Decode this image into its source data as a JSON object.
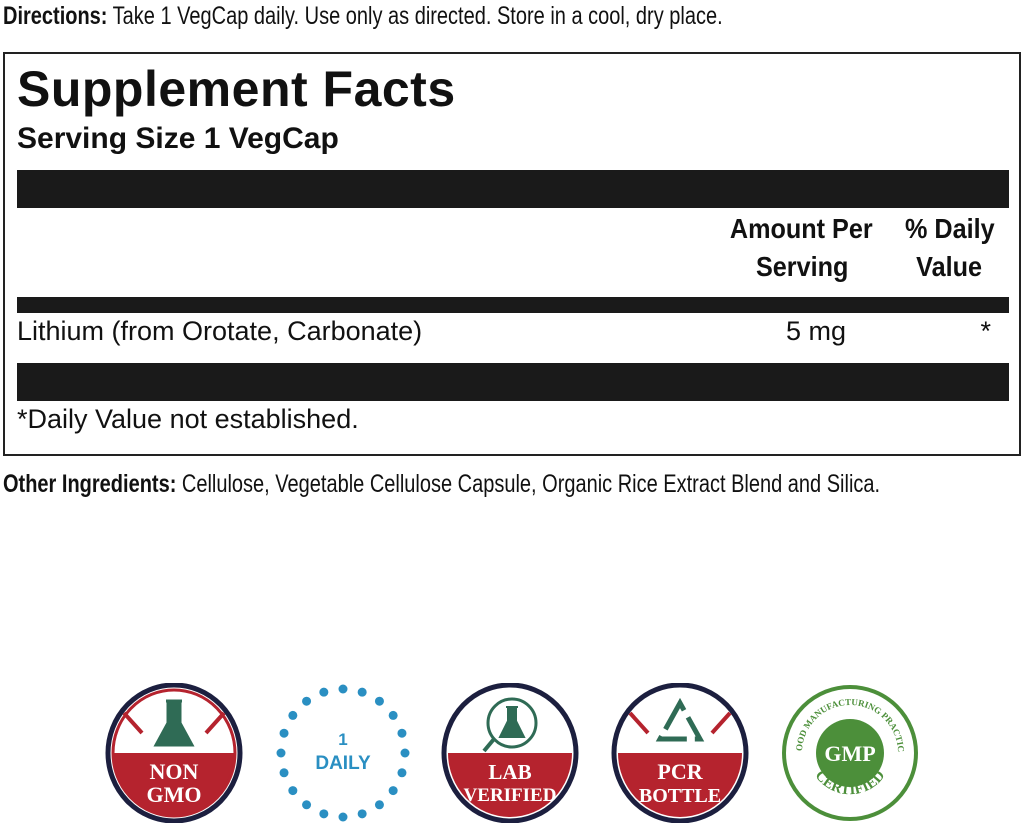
{
  "directions": {
    "label": "Directions:",
    "text": " Take 1 VegCap daily. Use only as directed. Store in a cool, dry place."
  },
  "facts": {
    "title": "Supplement Facts",
    "serving_size": "Serving Size 1 VegCap",
    "col_amount": [
      "Amount Per",
      "Serving"
    ],
    "col_dv": [
      "% Daily",
      "Value"
    ],
    "rows": [
      {
        "name": "Lithium (from Orotate, Carbonate)",
        "amount": "5 mg",
        "dv": "*"
      }
    ],
    "footnote": "*Daily Value not established."
  },
  "other": {
    "label": "Other Ingredients:",
    "text": " Cellulose, Vegetable Cellulose Capsule, Organic Rice Extract Blend and Silica."
  },
  "badges": [
    {
      "lines": [
        "NON",
        "GMO"
      ],
      "icon": "flask-icon"
    },
    {
      "lines": [
        "1",
        "DAILY"
      ],
      "icon": "dotted-circle"
    },
    {
      "lines": [
        "LAB",
        "VERIFIED"
      ],
      "icon": "magnifier-flask-icon"
    },
    {
      "lines": [
        "PCR",
        "BOTTLE"
      ],
      "icon": "recycle-icon"
    },
    {
      "lines": [
        "GOOD MANUFACTURING PRACTICE",
        "GMP",
        "CERTIFIED"
      ],
      "icon": "gmp-seal"
    }
  ],
  "colors": {
    "red": "#b5232e",
    "navy": "#1c1f3f",
    "teal": "#2f6b55",
    "blue": "#2a8fc2",
    "green": "#4c8f3a"
  }
}
